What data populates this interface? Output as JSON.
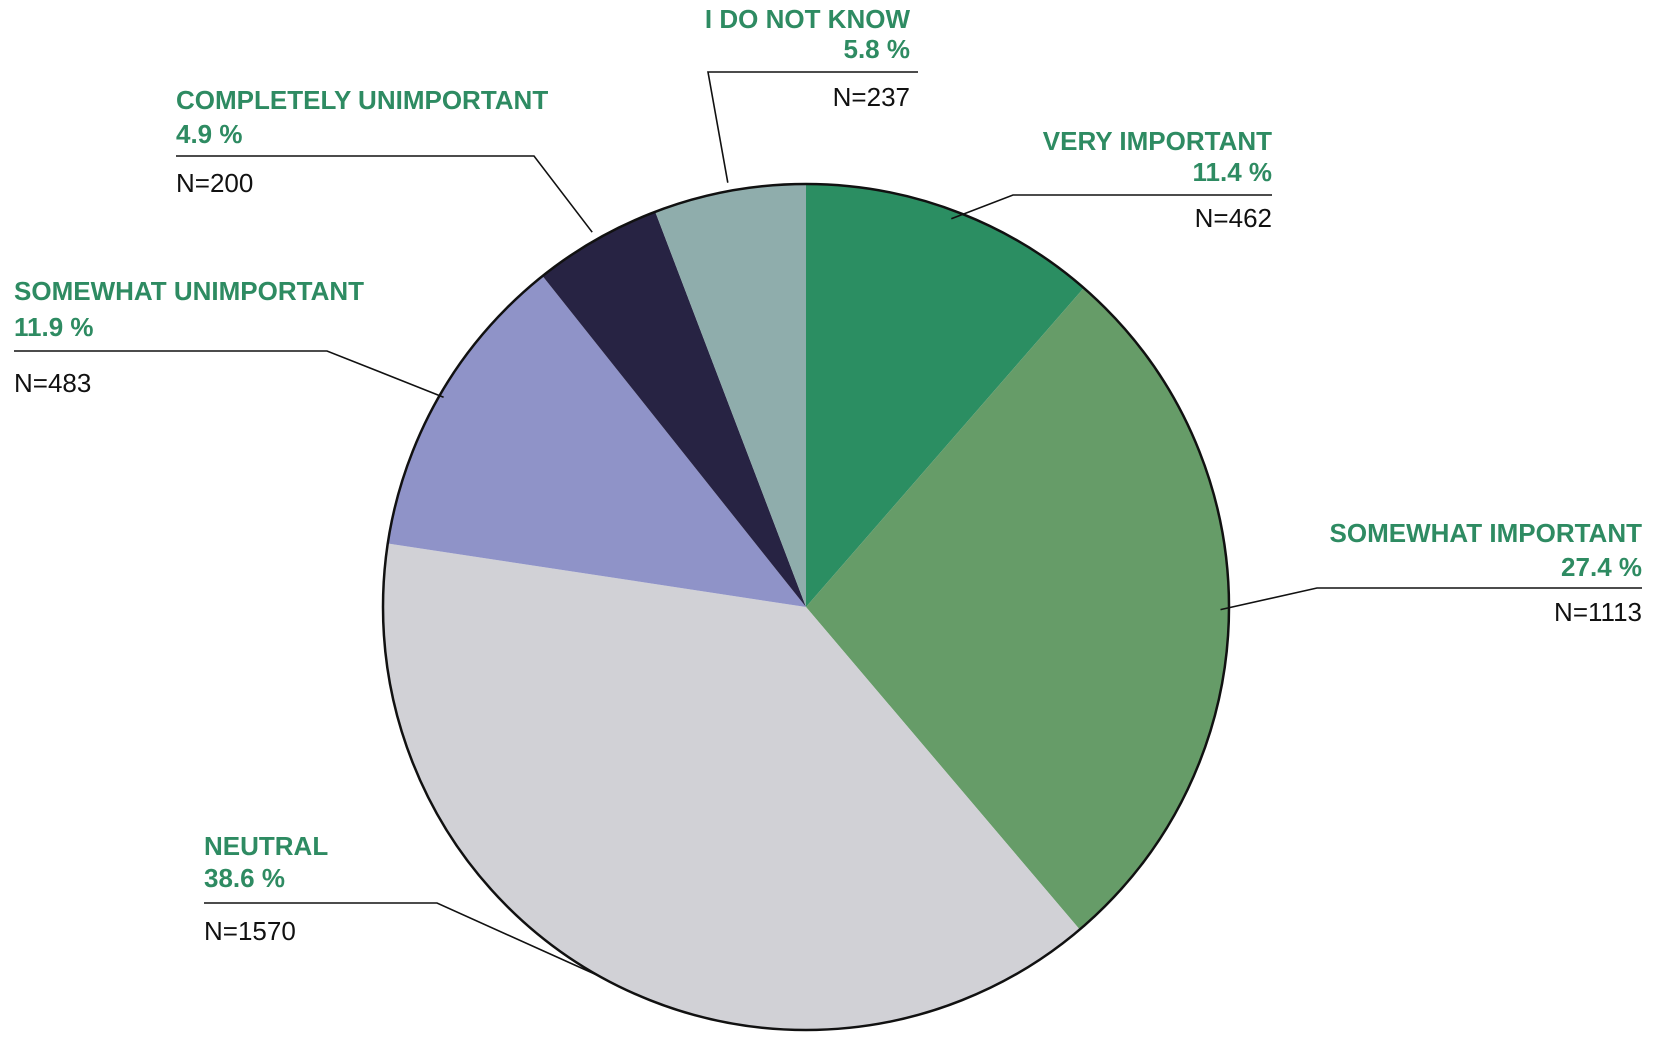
{
  "chart_data": {
    "type": "pie",
    "title": "",
    "start_angle_deg": 0,
    "direction": "clockwise",
    "label_color": "#2e8b62",
    "slices": [
      {
        "label": "VERY IMPORTANT",
        "pct_label": "11.4 %",
        "percent": 11.4,
        "n_label": "N=462",
        "n": 462,
        "color": "#2b8e62"
      },
      {
        "label": "SOMEWHAT IMPORTANT",
        "pct_label": "27.4 %",
        "percent": 27.4,
        "n_label": "N=1113",
        "n": 1113,
        "color": "#669c68"
      },
      {
        "label": "NEUTRAL",
        "pct_label": "38.6 %",
        "percent": 38.6,
        "n_label": "N=1570",
        "n": 1570,
        "color": "#d1d1d6"
      },
      {
        "label": "SOMEWHAT UNIMPORTANT",
        "pct_label": "11.9 %",
        "percent": 11.9,
        "n_label": "N=483",
        "n": 483,
        "color": "#8f93c8"
      },
      {
        "label": "COMPLETELY UNIMPORTANT",
        "pct_label": "4.9 %",
        "percent": 4.9,
        "n_label": "N=200",
        "n": 200,
        "color": "#272343"
      },
      {
        "label": "I DO NOT KNOW",
        "pct_label": "5.8 %",
        "percent": 5.8,
        "n_label": "N=237",
        "n": 237,
        "color": "#8fadac"
      }
    ]
  }
}
